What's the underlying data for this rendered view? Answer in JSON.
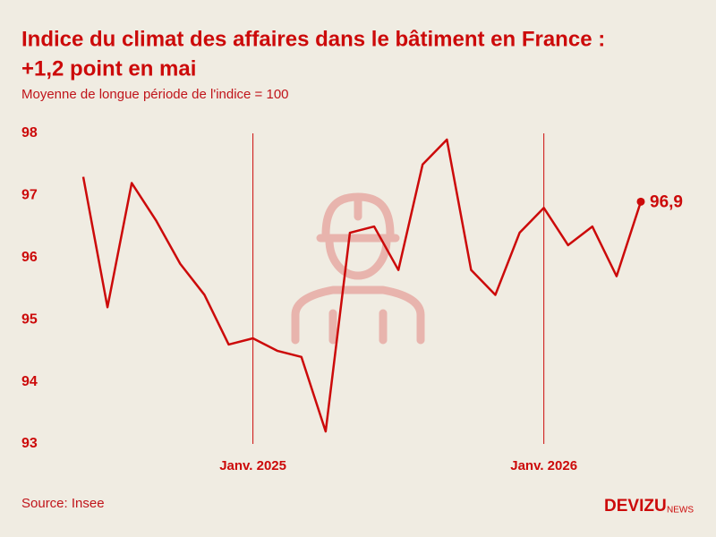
{
  "chart_data": {
    "type": "line",
    "title": "Indice du climat des affaires dans le bâtiment en France :",
    "title_line2": "+1,2 point en mai",
    "subtitle": "Moyenne de longue période de l'indice = 100",
    "source": "Source: Insee",
    "brand": "DEVIZU",
    "brand_suffix": "NEWS",
    "categories": [
      null,
      null,
      null,
      null,
      null,
      null,
      null,
      "Janv. 2025",
      null,
      null,
      null,
      null,
      null,
      null,
      null,
      null,
      null,
      null,
      null,
      "Janv. 2026",
      null,
      null,
      null,
      null
    ],
    "series": [
      {
        "name": "Indice",
        "color": "#cc0a0a",
        "values": [
          97.3,
          95.2,
          97.2,
          96.6,
          95.9,
          95.4,
          94.6,
          94.7,
          94.5,
          94.4,
          93.2,
          96.4,
          96.5,
          95.8,
          97.5,
          97.9,
          95.8,
          95.4,
          96.4,
          96.8,
          96.2,
          96.5,
          95.7,
          96.9
        ],
        "value_labels": [
          null,
          null,
          null,
          null,
          null,
          null,
          null,
          null,
          null,
          null,
          null,
          null,
          null,
          null,
          null,
          null,
          null,
          null,
          null,
          null,
          null,
          null,
          null,
          "96,9"
        ]
      }
    ],
    "ylim": [
      93,
      98
    ],
    "yticks": [
      93,
      94,
      95,
      96,
      97,
      98
    ],
    "grid": false
  }
}
